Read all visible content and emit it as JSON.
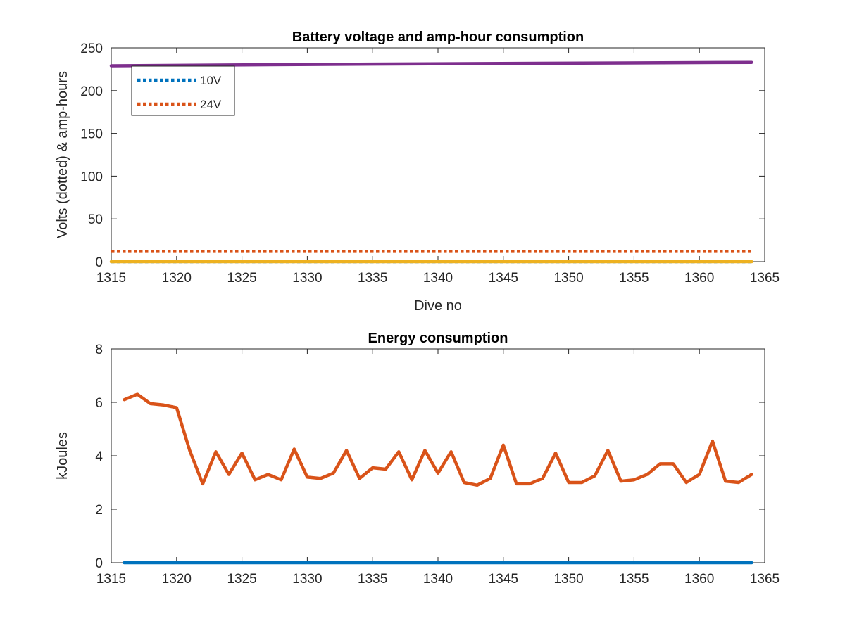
{
  "chart_data": [
    {
      "type": "line",
      "title": "Battery voltage and amp-hour consumption",
      "xlabel": "Dive no",
      "ylabel": "Volts (dotted) & amp-hours",
      "xlim": [
        1315,
        1365
      ],
      "ylim": [
        0,
        250
      ],
      "xticks": [
        1315,
        1320,
        1325,
        1330,
        1335,
        1340,
        1345,
        1350,
        1355,
        1360,
        1365
      ],
      "yticks": [
        0,
        50,
        100,
        150,
        200,
        250
      ],
      "grid": false,
      "legend_location": "top-left",
      "series": [
        {
          "name": "10V",
          "style": "dotted",
          "color": "#0072BD",
          "x": [
            1315,
            1364
          ],
          "y": [
            0,
            0
          ]
        },
        {
          "name": "24V",
          "style": "dotted",
          "color": "#D95319",
          "x": [
            1315,
            1364
          ],
          "y": [
            12,
            12
          ]
        },
        {
          "style": "solid",
          "color": "#EDB120",
          "x": [
            1315,
            1364
          ],
          "y": [
            0,
            0
          ]
        },
        {
          "style": "solid",
          "color": "#7E2F8E",
          "x": [
            1315,
            1335,
            1364
          ],
          "y": [
            229,
            231,
            233
          ]
        }
      ]
    },
    {
      "type": "line",
      "title": "Energy consumption",
      "xlabel": "",
      "ylabel": "kJoules",
      "xlim": [
        1315,
        1365
      ],
      "ylim": [
        0,
        8
      ],
      "xticks": [
        1315,
        1320,
        1325,
        1330,
        1335,
        1340,
        1345,
        1350,
        1355,
        1360,
        1365
      ],
      "yticks": [
        0,
        2,
        4,
        6,
        8
      ],
      "grid": false,
      "series": [
        {
          "style": "solid",
          "color": "#0072BD",
          "x": [
            1316,
            1364
          ],
          "y": [
            0,
            0
          ]
        },
        {
          "style": "solid",
          "color": "#D95319",
          "x": [
            1316,
            1317,
            1318,
            1319,
            1320,
            1321,
            1322,
            1323,
            1324,
            1325,
            1326,
            1327,
            1328,
            1329,
            1330,
            1331,
            1332,
            1333,
            1334,
            1335,
            1336,
            1337,
            1338,
            1339,
            1340,
            1341,
            1342,
            1343,
            1344,
            1345,
            1346,
            1347,
            1348,
            1349,
            1350,
            1351,
            1352,
            1353,
            1354,
            1355,
            1356,
            1357,
            1358,
            1359,
            1360,
            1361,
            1362,
            1363,
            1364
          ],
          "y": [
            6.1,
            6.3,
            5.95,
            5.9,
            5.8,
            4.2,
            2.95,
            4.15,
            3.3,
            4.1,
            3.1,
            3.3,
            3.1,
            4.25,
            3.2,
            3.15,
            3.35,
            4.2,
            3.15,
            3.55,
            3.5,
            4.15,
            3.1,
            4.2,
            3.35,
            4.15,
            3.0,
            2.9,
            3.15,
            4.4,
            2.95,
            2.95,
            3.15,
            4.1,
            3.0,
            3.0,
            3.25,
            4.2,
            3.05,
            3.1,
            3.3,
            3.7,
            3.7,
            3.0,
            3.3,
            4.55,
            3.05,
            3.0,
            3.3
          ]
        }
      ]
    }
  ]
}
